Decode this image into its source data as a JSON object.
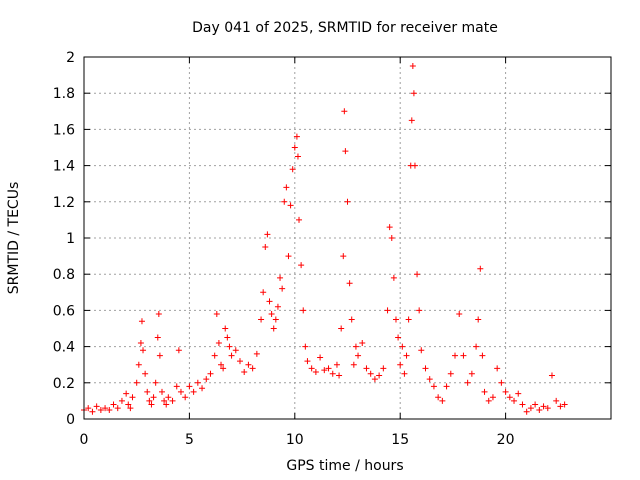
{
  "chart_data": {
    "type": "scatter",
    "title": "Day 041 of 2025, SRMTID for receiver mate",
    "xlabel": "GPS time / hours",
    "ylabel": "SRMTID / TECUs",
    "xlim": [
      0,
      25
    ],
    "ylim": [
      0,
      2
    ],
    "xticks": [
      0,
      5,
      10,
      15,
      20
    ],
    "yticks": [
      0,
      0.2,
      0.4,
      0.6,
      0.8,
      1,
      1.2,
      1.4,
      1.6,
      1.8,
      2
    ],
    "xtick_labels": [
      "0",
      "5",
      "10",
      "15",
      "20"
    ],
    "ytick_labels": [
      "0",
      "0.2",
      "0.4",
      "0.6",
      "0.8",
      "1",
      "1.2",
      "1.4",
      "1.6",
      "1.8",
      "2"
    ],
    "grid": true,
    "marker": "+",
    "color": "#ff0000",
    "series": [
      {
        "name": "SRMTID",
        "x": [
          0.0,
          0.2,
          0.4,
          0.6,
          0.8,
          1.0,
          1.2,
          1.4,
          1.6,
          1.8,
          2.0,
          2.1,
          2.2,
          2.3,
          2.5,
          2.6,
          2.7,
          2.75,
          2.8,
          2.9,
          3.0,
          3.1,
          3.2,
          3.3,
          3.4,
          3.5,
          3.55,
          3.6,
          3.7,
          3.8,
          3.9,
          4.0,
          4.2,
          4.4,
          4.5,
          4.6,
          4.8,
          5.0,
          5.2,
          5.4,
          5.6,
          5.8,
          6.0,
          6.2,
          6.3,
          6.4,
          6.5,
          6.6,
          6.7,
          6.8,
          6.9,
          7.0,
          7.2,
          7.4,
          7.6,
          7.8,
          8.0,
          8.2,
          8.4,
          8.5,
          8.6,
          8.7,
          8.8,
          8.9,
          9.0,
          9.1,
          9.2,
          9.3,
          9.4,
          9.5,
          9.6,
          9.7,
          9.8,
          9.9,
          10.0,
          10.1,
          10.15,
          10.2,
          10.3,
          10.4,
          10.5,
          10.6,
          10.8,
          11.0,
          11.2,
          11.4,
          11.6,
          11.8,
          12.0,
          12.1,
          12.2,
          12.3,
          12.35,
          12.4,
          12.5,
          12.6,
          12.7,
          12.8,
          12.9,
          13.0,
          13.2,
          13.4,
          13.6,
          13.8,
          14.0,
          14.2,
          14.4,
          14.5,
          14.6,
          14.7,
          14.8,
          14.9,
          15.0,
          15.1,
          15.2,
          15.3,
          15.4,
          15.5,
          15.55,
          15.6,
          15.65,
          15.7,
          15.8,
          15.9,
          16.0,
          16.2,
          16.4,
          16.6,
          16.8,
          17.0,
          17.2,
          17.4,
          17.6,
          17.8,
          18.0,
          18.2,
          18.4,
          18.6,
          18.7,
          18.8,
          18.9,
          19.0,
          19.2,
          19.4,
          19.6,
          19.8,
          20.0,
          20.2,
          20.4,
          20.6,
          20.8,
          21.0,
          21.2,
          21.4,
          21.6,
          21.8,
          22.0,
          22.2,
          22.4,
          22.6,
          22.8
        ],
        "y": [
          0.05,
          0.06,
          0.04,
          0.07,
          0.05,
          0.06,
          0.05,
          0.08,
          0.06,
          0.1,
          0.14,
          0.08,
          0.06,
          0.12,
          0.2,
          0.3,
          0.42,
          0.54,
          0.38,
          0.25,
          0.15,
          0.1,
          0.08,
          0.12,
          0.2,
          0.45,
          0.58,
          0.35,
          0.15,
          0.1,
          0.08,
          0.12,
          0.1,
          0.18,
          0.38,
          0.15,
          0.12,
          0.18,
          0.15,
          0.2,
          0.17,
          0.22,
          0.25,
          0.35,
          0.58,
          0.42,
          0.3,
          0.28,
          0.5,
          0.45,
          0.4,
          0.35,
          0.38,
          0.32,
          0.26,
          0.3,
          0.28,
          0.36,
          0.55,
          0.7,
          0.95,
          1.02,
          0.65,
          0.58,
          0.5,
          0.55,
          0.62,
          0.78,
          0.72,
          1.2,
          1.28,
          0.9,
          1.18,
          1.38,
          1.5,
          1.56,
          1.45,
          1.1,
          0.85,
          0.6,
          0.4,
          0.32,
          0.28,
          0.26,
          0.34,
          0.27,
          0.28,
          0.25,
          0.3,
          0.24,
          0.5,
          0.9,
          1.7,
          1.48,
          1.2,
          0.75,
          0.55,
          0.3,
          0.4,
          0.35,
          0.42,
          0.28,
          0.25,
          0.22,
          0.24,
          0.28,
          0.6,
          1.06,
          1.0,
          0.78,
          0.55,
          0.45,
          0.3,
          0.4,
          0.25,
          0.35,
          0.55,
          1.4,
          1.65,
          1.95,
          1.8,
          1.4,
          0.8,
          0.6,
          0.38,
          0.28,
          0.22,
          0.18,
          0.12,
          0.1,
          0.18,
          0.25,
          0.35,
          0.58,
          0.35,
          0.2,
          0.25,
          0.4,
          0.55,
          0.83,
          0.35,
          0.15,
          0.1,
          0.12,
          0.28,
          0.2,
          0.15,
          0.12,
          0.1,
          0.14,
          0.08,
          0.04,
          0.06,
          0.08,
          0.05,
          0.07,
          0.06,
          0.24,
          0.1,
          0.07,
          0.08
        ]
      }
    ]
  }
}
